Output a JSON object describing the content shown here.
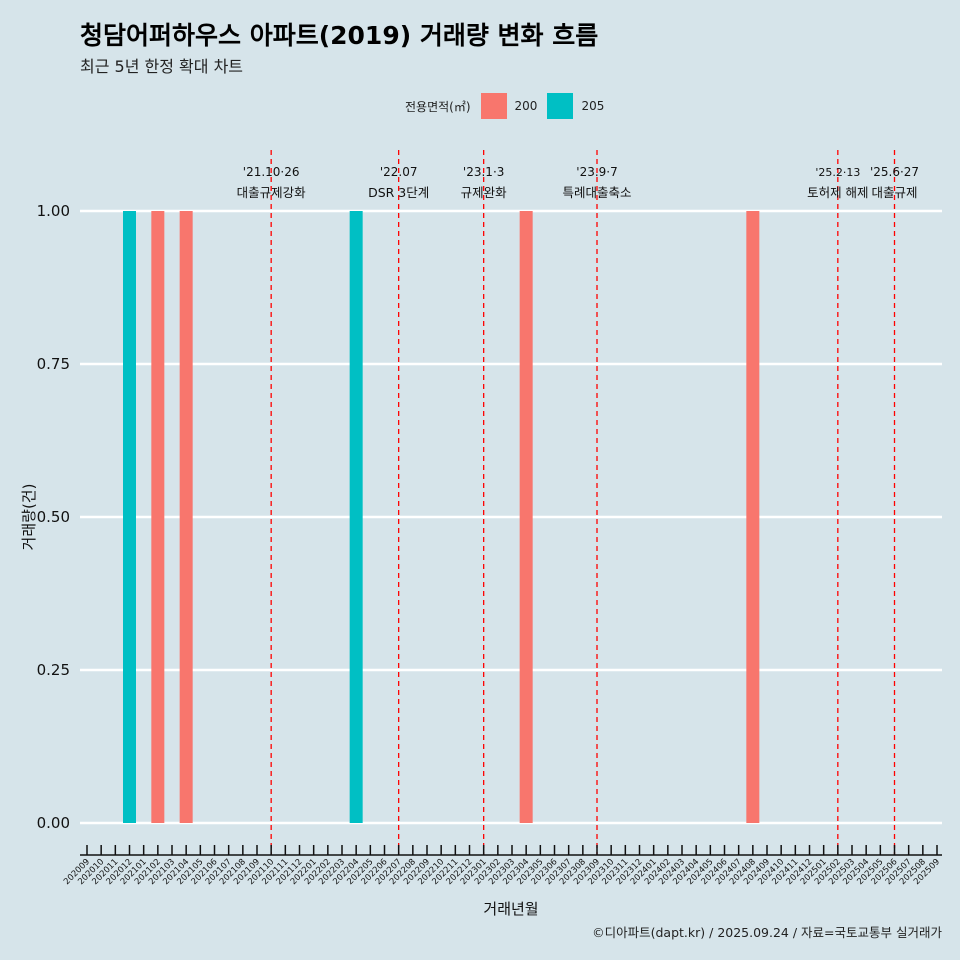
{
  "title": "청담어퍼하우스 아파트(2019) 거래량 변화 흐름",
  "subtitle": "최근 5년 한정 확대 차트",
  "caption": "©디아파트(dapt.kr) / 2025.09.24 / 자료=국토교통부 실거래가",
  "chart_data": {
    "type": "bar",
    "xlabel": "거래년월",
    "ylabel": "거래량(건)",
    "ylim": [
      0,
      1
    ],
    "yticks": [
      "0.00",
      "0.25",
      "0.50",
      "0.75",
      "1.00"
    ],
    "legend": {
      "title": "전용면적(㎡)",
      "position": "top",
      "entries": [
        {
          "name": "200",
          "color": "#F8766D"
        },
        {
          "name": "205",
          "color": "#00BFC4"
        }
      ]
    },
    "categories": [
      "202009",
      "202010",
      "202011",
      "202012",
      "202101",
      "202102",
      "202103",
      "202104",
      "202105",
      "202106",
      "202107",
      "202108",
      "202109",
      "202110",
      "202111",
      "202112",
      "202201",
      "202202",
      "202203",
      "202204",
      "202205",
      "202206",
      "202207",
      "202208",
      "202209",
      "202210",
      "202211",
      "202212",
      "202301",
      "202302",
      "202303",
      "202304",
      "202305",
      "202306",
      "202307",
      "202308",
      "202309",
      "202310",
      "202311",
      "202312",
      "202401",
      "202402",
      "202403",
      "202404",
      "202405",
      "202406",
      "202407",
      "202408",
      "202409",
      "202410",
      "202411",
      "202412",
      "202501",
      "202502",
      "202503",
      "202504",
      "202505",
      "202506",
      "202507",
      "202508",
      "202509"
    ],
    "bars": [
      {
        "month": "202012",
        "series": "205",
        "value": 1
      },
      {
        "month": "202102",
        "series": "200",
        "value": 1
      },
      {
        "month": "202104",
        "series": "200",
        "value": 1
      },
      {
        "month": "202204",
        "series": "205",
        "value": 1
      },
      {
        "month": "202304",
        "series": "200",
        "value": 1
      },
      {
        "month": "202408",
        "series": "200",
        "value": 1
      }
    ],
    "annotations": [
      {
        "month": "202110",
        "date": "'21.10·26",
        "label": "대출규제강화"
      },
      {
        "month": "202207",
        "date": "'22.07",
        "label": "DSR 3단계"
      },
      {
        "month": "202301",
        "date": "'23.1·3",
        "label": "규제완화"
      },
      {
        "month": "202309",
        "date": "'23.9·7",
        "label": "특례대출축소"
      },
      {
        "month": "202502",
        "date": "'25.2·13",
        "label": "토허제 해제"
      },
      {
        "month": "202506",
        "date": "'25.6·27",
        "label": "대출규제"
      }
    ]
  }
}
